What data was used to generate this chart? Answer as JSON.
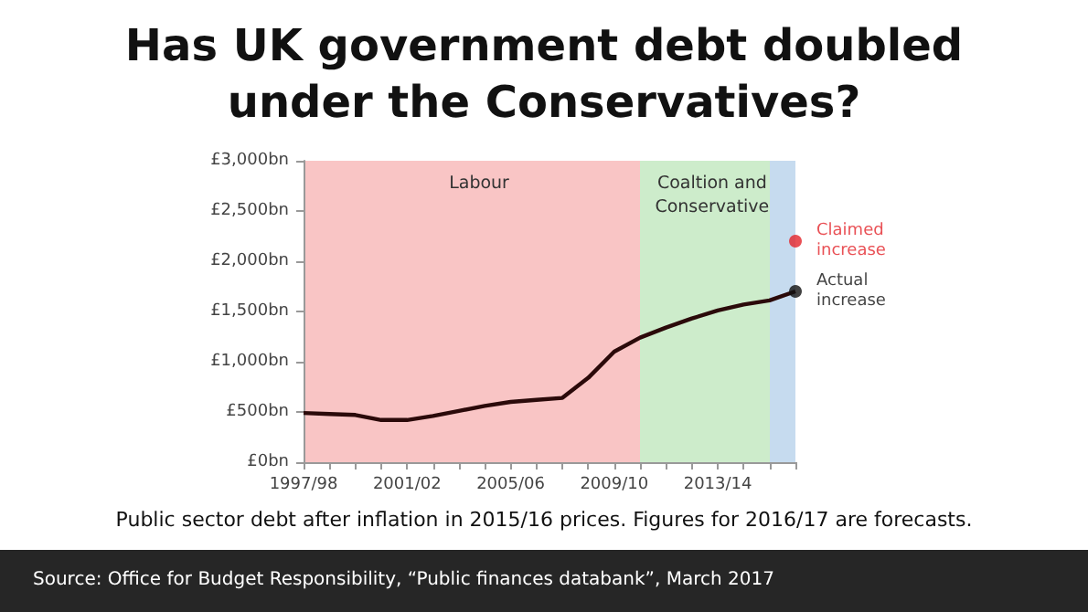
{
  "chart_data": {
    "type": "line",
    "title": "Has UK government debt doubled under the Conservatives?",
    "annotations": [
      "Public sector debt after inflation in 2015/16 prices. Figures for 2016/17 are forecasts.",
      "Source: Office for Budget Responsibility, “Public finances databank”, March 2017",
      "Labour",
      "Coaltion and Conservative"
    ],
    "categories": [
      "1997/98",
      null,
      null,
      null,
      "2001/02",
      null,
      null,
      null,
      "2005/06",
      null,
      null,
      null,
      "2009/10",
      null,
      null,
      null,
      "2013/14",
      null,
      null,
      null
    ],
    "series": [
      {
        "color": "#2b0a0a",
        "marker": "none",
        "values": [
          490,
          480,
          470,
          420,
          420,
          460,
          510,
          560,
          600,
          620,
          640,
          840,
          1100,
          1240,
          1340,
          1430,
          1510,
          1570,
          1610,
          1700
        ]
      },
      {
        "type": "scatter",
        "name": "Actual increase",
        "color": "#111111",
        "marker": "circle",
        "values": [
          null,
          null,
          null,
          null,
          null,
          null,
          null,
          null,
          null,
          null,
          null,
          null,
          null,
          null,
          null,
          null,
          null,
          null,
          null,
          1700
        ]
      },
      {
        "type": "scatter",
        "name": "Claimed increase",
        "color": "#e3242b",
        "marker": "circle",
        "values": [
          null,
          null,
          null,
          null,
          null,
          null,
          null,
          null,
          null,
          null,
          null,
          null,
          null,
          null,
          null,
          null,
          null,
          null,
          null,
          2200
        ]
      }
    ],
    "ylim": [
      0,
      3000
    ],
    "yticks": [
      {
        "value": 0,
        "label": "£0bn"
      },
      {
        "value": 500,
        "label": "£500bn"
      },
      {
        "value": 1000,
        "label": "£1,000bn"
      },
      {
        "value": 1500,
        "label": "£1,500bn"
      },
      {
        "value": 2000,
        "label": "£2,000bn"
      },
      {
        "value": 2500,
        "label": "£2,500bn"
      },
      {
        "value": 3000,
        "label": "£3,000bn"
      }
    ],
    "grid": false
  }
}
